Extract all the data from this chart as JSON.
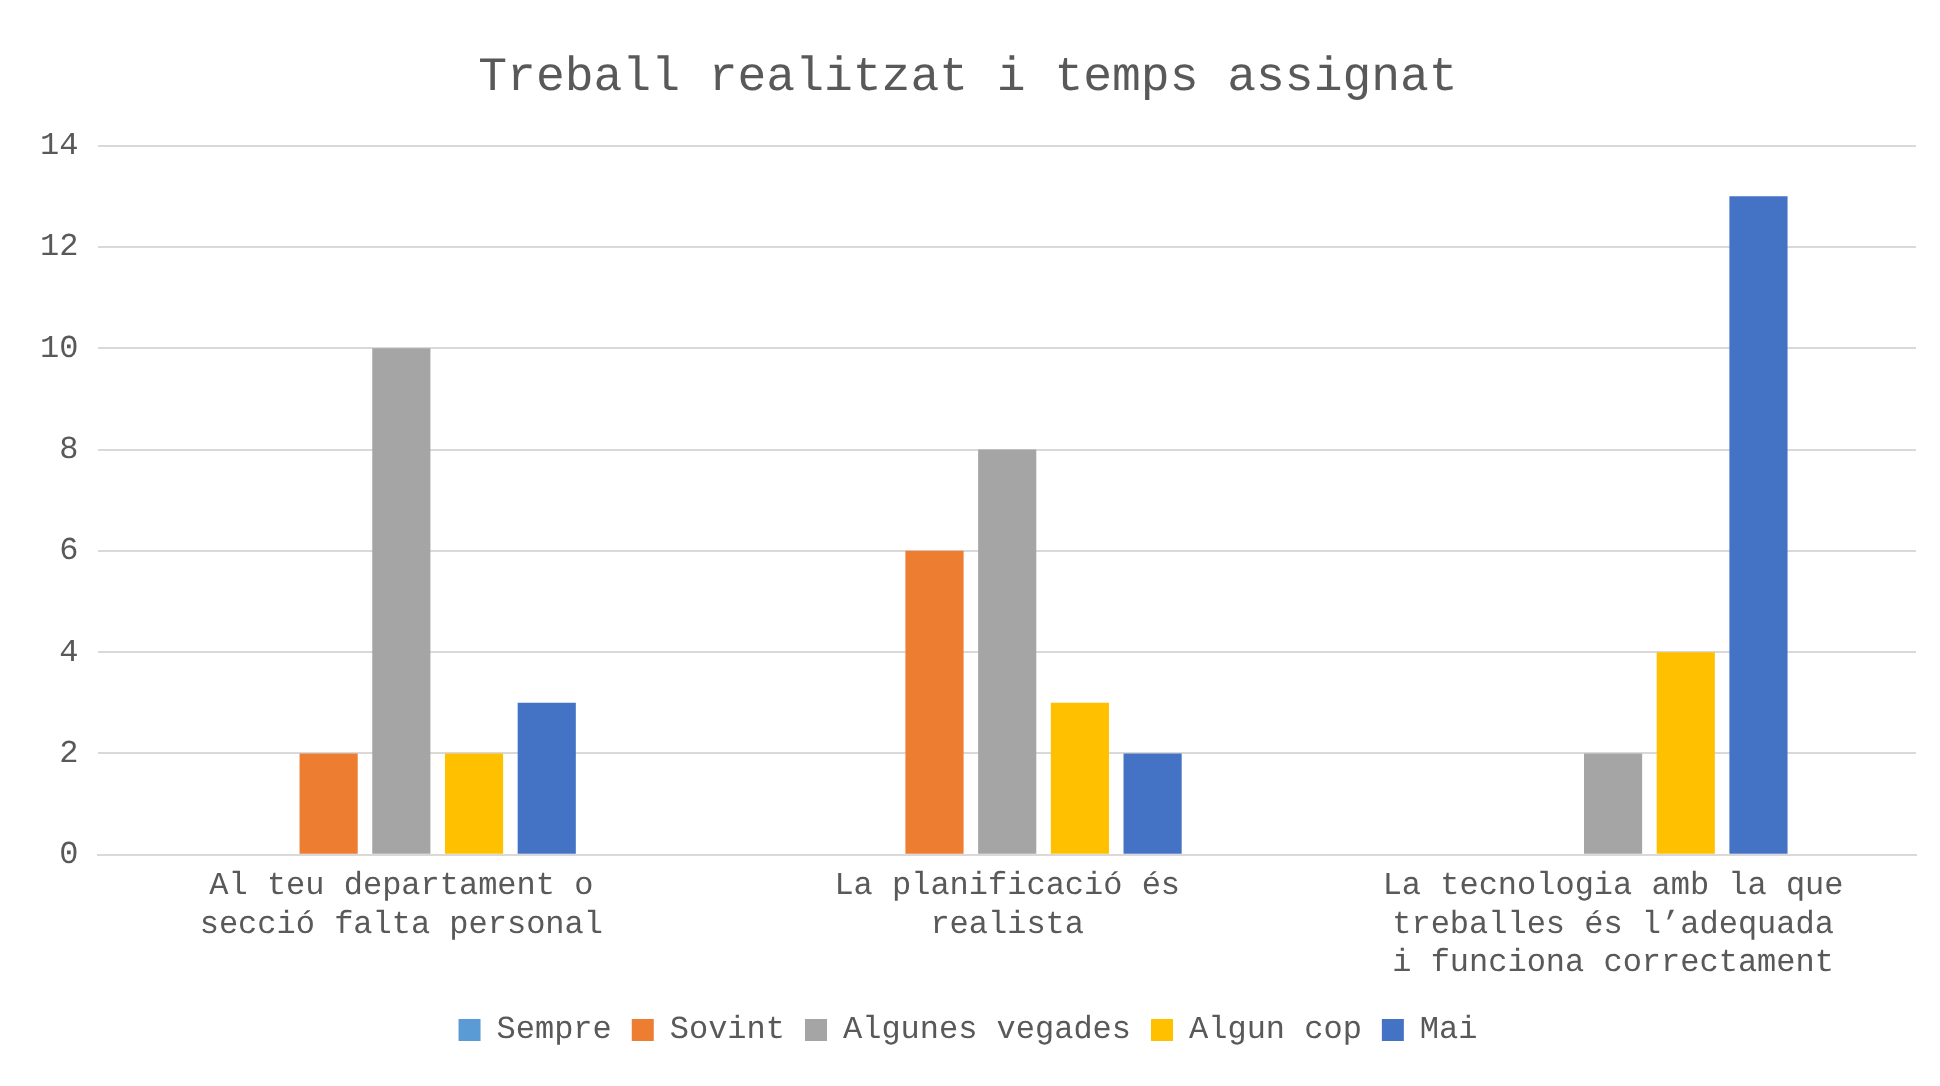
{
  "chart_data": {
    "type": "bar",
    "title": "Treball realitzat i temps assignat",
    "categories": [
      "Al teu departament o secció falta personal",
      "La planificació és realista",
      "La tecnologia amb la que treballes és l’adequada i funciona correctament"
    ],
    "series": [
      {
        "name": "Sempre",
        "color": "#5b9bd5",
        "values": [
          0,
          0,
          0
        ]
      },
      {
        "name": "Sovint",
        "color": "#ed7d31",
        "values": [
          2,
          6,
          0
        ]
      },
      {
        "name": "Algunes vegades",
        "color": "#a5a5a5",
        "values": [
          10,
          8,
          2
        ]
      },
      {
        "name": "Algun cop",
        "color": "#ffc000",
        "values": [
          2,
          3,
          4
        ]
      },
      {
        "name": "Mai",
        "color": "#4472c4",
        "values": [
          3,
          2,
          13
        ]
      }
    ],
    "ylim": [
      0,
      14
    ],
    "yticks": [
      0,
      2,
      4,
      6,
      8,
      10,
      12,
      14
    ],
    "grid": "y",
    "legend": "bottom"
  }
}
